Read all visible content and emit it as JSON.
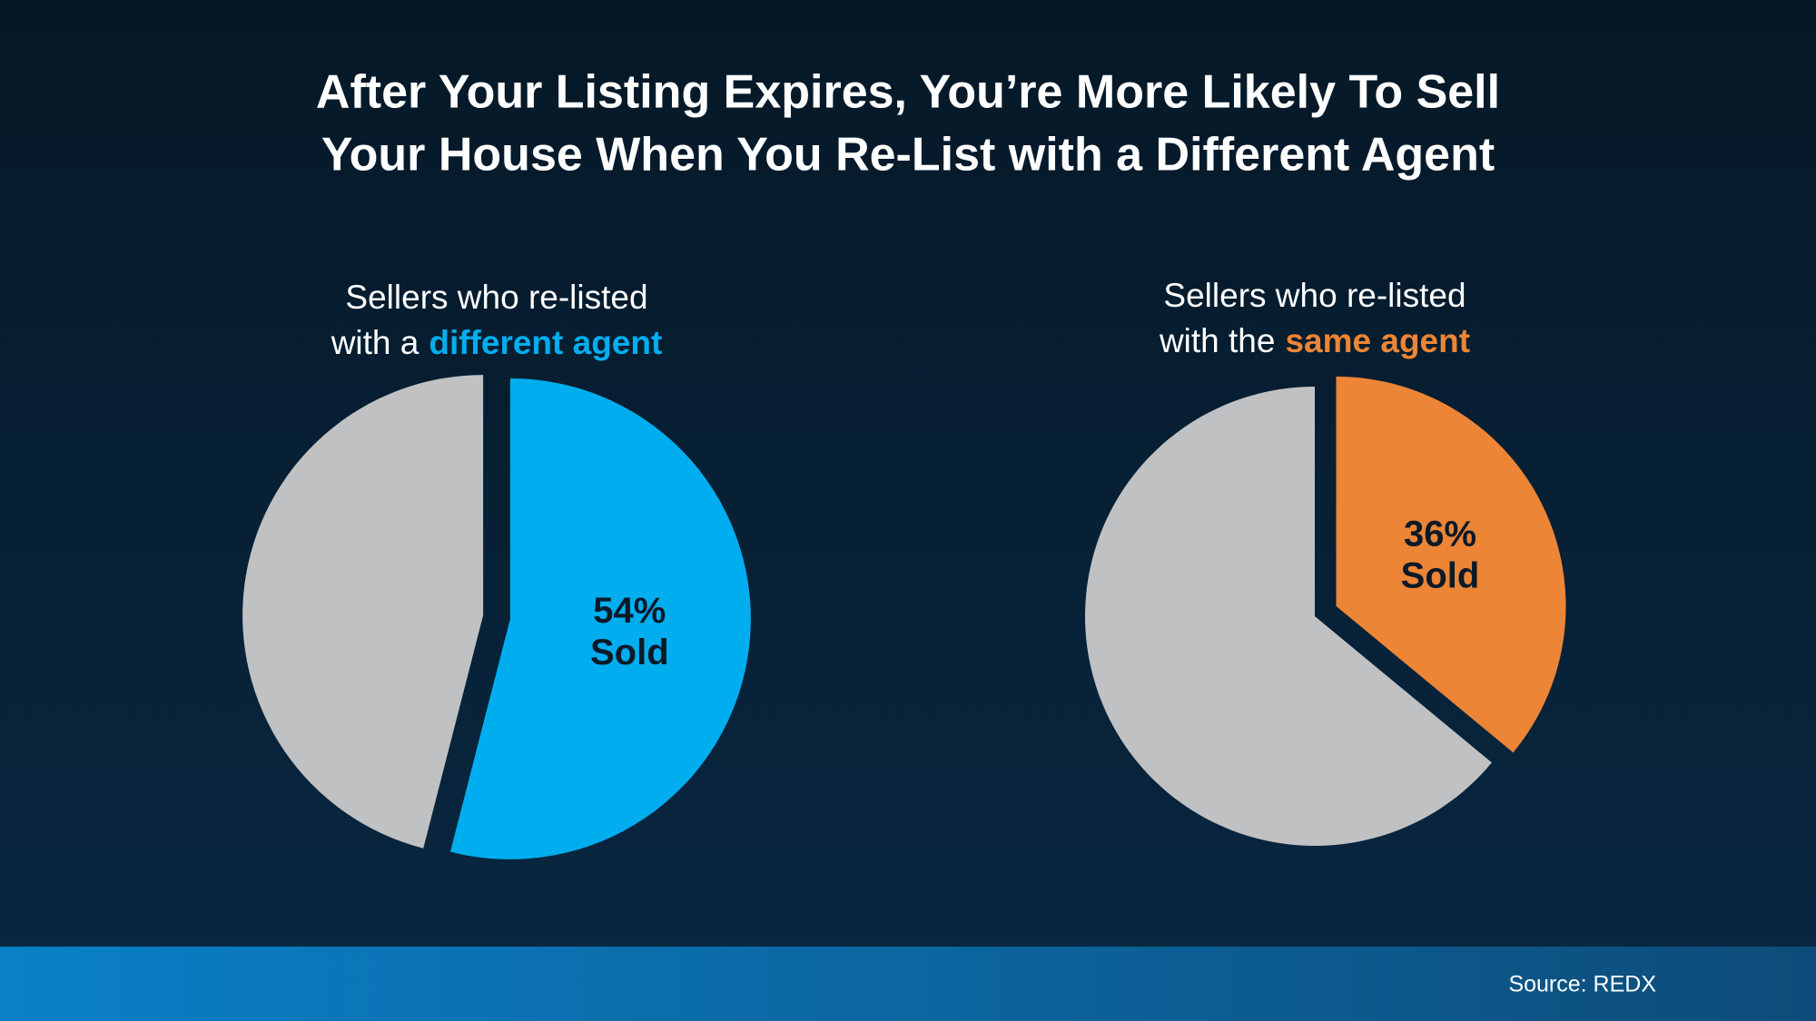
{
  "title": [
    "After Your Listing Expires, You’re More Likely To Sell",
    "Your House When You Re-List with a Different Agent"
  ],
  "source": "Source: REDX",
  "chart_data": [
    {
      "type": "pie",
      "subtitle": [
        "Sellers who re-listed",
        "with a",
        "different agent"
      ],
      "highlight_color": "#00aeef",
      "categories": [
        "Sold",
        null
      ],
      "values": [
        54,
        46
      ],
      "value_labels": [
        "54%",
        null
      ],
      "colors": [
        "#00aeef",
        "#bfc1c3"
      ]
    },
    {
      "type": "pie",
      "subtitle": [
        "Sellers who re-listed",
        "with the",
        "same agent"
      ],
      "highlight_color": "#ec8535",
      "categories": [
        "Sold",
        null
      ],
      "values": [
        36,
        64
      ],
      "value_labels": [
        "36%",
        null
      ],
      "colors": [
        "#ec8535",
        "#bfc1c3"
      ]
    }
  ]
}
